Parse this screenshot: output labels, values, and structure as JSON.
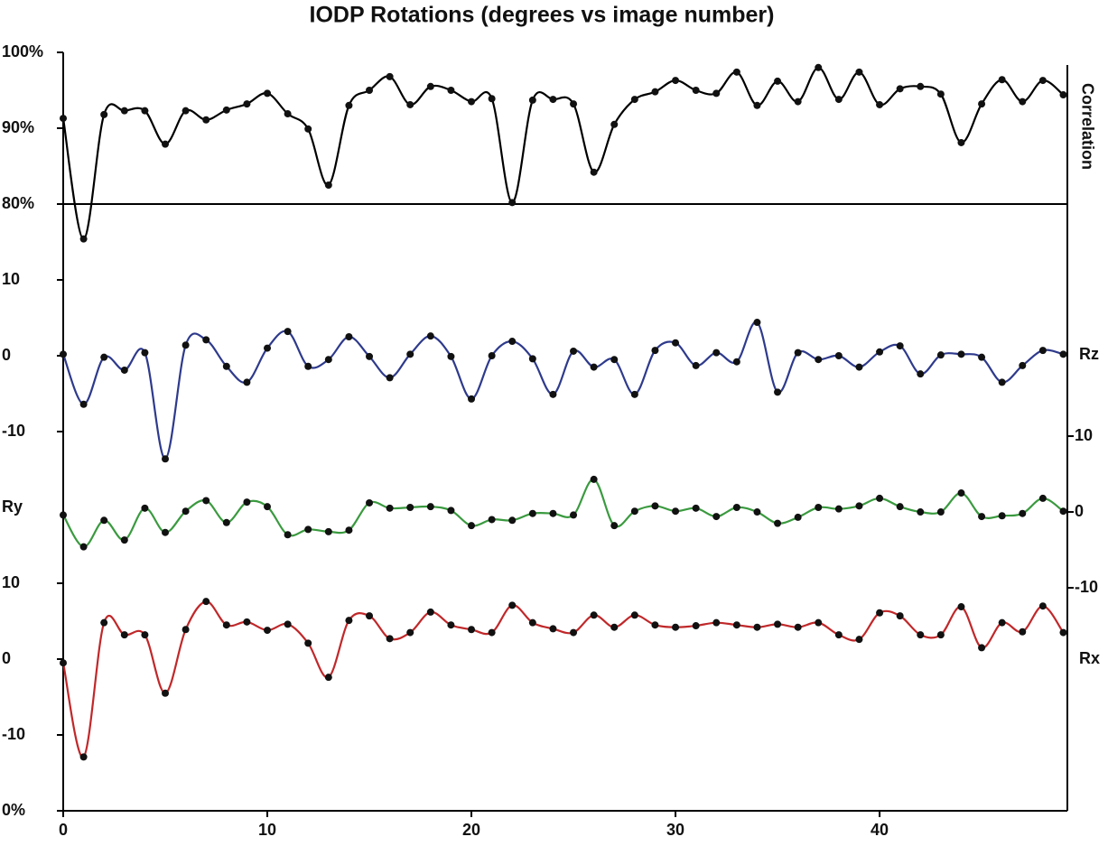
{
  "chart_data": {
    "type": "line",
    "title": "IODP Rotations (degrees vs image number)",
    "x": [
      0,
      1,
      2,
      3,
      4,
      5,
      6,
      7,
      8,
      9,
      10,
      11,
      12,
      13,
      14,
      15,
      16,
      17,
      18,
      19,
      20,
      21,
      22,
      23,
      24,
      25,
      26,
      27,
      28,
      29,
      30,
      31,
      32,
      33,
      34,
      35,
      36,
      37,
      38,
      39,
      40,
      41,
      42,
      43,
      44,
      45,
      46,
      47,
      48,
      49
    ],
    "xlim": [
      0,
      49.2
    ],
    "xticks": [
      0,
      10,
      20,
      30,
      40
    ],
    "markers": true,
    "smooth": true,
    "series": [
      {
        "name": "Correlation",
        "color": "#000000",
        "tick_side": "left",
        "name_side": "right",
        "reference_line": 80,
        "ylim": [
          0,
          100
        ],
        "yticks": [
          {
            "value": 0,
            "label": "0%"
          },
          {
            "value": 80,
            "label": "80%"
          },
          {
            "value": 90,
            "label": "90%"
          },
          {
            "value": 100,
            "label": "100%"
          }
        ],
        "values": [
          91.3,
          75.4,
          91.8,
          92.3,
          92.3,
          87.9,
          92.3,
          91.1,
          92.4,
          93.2,
          94.6,
          91.9,
          89.9,
          82.5,
          93.0,
          95.0,
          96.8,
          93.1,
          95.5,
          95.0,
          93.5,
          93.9,
          80.2,
          93.7,
          93.8,
          93.2,
          84.2,
          90.5,
          93.8,
          94.8,
          96.3,
          95.0,
          94.6,
          97.4,
          93.0,
          96.2,
          93.5,
          98.0,
          93.8,
          97.4,
          93.1,
          95.2,
          95.5,
          94.5,
          88.1,
          93.2,
          96.4,
          93.5,
          96.3,
          94.4
        ]
      },
      {
        "name": "Rz",
        "color": "#2e3a8c",
        "tick_side": "left",
        "name_side": "right",
        "ylim": [
          -60,
          40
        ],
        "yticks": [
          -10,
          0,
          10
        ],
        "values": [
          0.2,
          -6.4,
          -0.2,
          -1.9,
          0.4,
          -13.6,
          1.4,
          2.1,
          -1.4,
          -3.5,
          1.0,
          3.2,
          -1.4,
          -0.5,
          2.5,
          -0.1,
          -2.9,
          0.2,
          2.6,
          -0.1,
          -5.7,
          0,
          1.9,
          -0.4,
          -5.1,
          0.6,
          -1.5,
          -0.5,
          -5.1,
          0.7,
          1.7,
          -1.3,
          0.4,
          -0.8,
          4.4,
          -4.8,
          0.4,
          -0.5,
          0,
          -1.5,
          0.5,
          1.3,
          -2.4,
          0.1,
          0.2,
          -0.2,
          -3.5,
          -1.3,
          0.7,
          0.2
        ]
      },
      {
        "name": "Ry",
        "color": "#3a9a3f",
        "tick_side": "right",
        "name_side": "left",
        "ylim": [
          -39.4,
          60.6
        ],
        "yticks": [
          -10,
          0,
          10
        ],
        "values": [
          -0.4,
          -4.6,
          -1.1,
          -3.7,
          0.5,
          -2.7,
          0.1,
          1.5,
          -1.4,
          1.3,
          0.7,
          -3.0,
          -2.3,
          -2.6,
          -2.4,
          1.2,
          0.5,
          0.6,
          0.7,
          0.2,
          -1.8,
          -1.0,
          -1.1,
          -0.2,
          -0.2,
          -0.4,
          4.3,
          -1.8,
          0.1,
          0.8,
          0.1,
          0.5,
          -0.6,
          0.6,
          0,
          -1.5,
          -0.7,
          0.6,
          0.4,
          0.8,
          1.8,
          0.7,
          0,
          0,
          2.5,
          -0.6,
          -0.5,
          -0.2,
          1.8,
          0.1
        ]
      },
      {
        "name": "Rx",
        "color": "#c0282a",
        "tick_side": "left",
        "name_side": "right",
        "ylim": [
          -20,
          80
        ],
        "yticks": [
          -10,
          0,
          10
        ],
        "values": [
          -0.5,
          -12.9,
          4.8,
          3.2,
          3.2,
          -4.5,
          3.9,
          7.6,
          4.5,
          4.9,
          3.8,
          4.6,
          2.1,
          -2.4,
          5.1,
          5.7,
          2.7,
          3.5,
          6.2,
          4.5,
          3.9,
          3.5,
          7.1,
          4.8,
          4.0,
          3.5,
          5.8,
          4.2,
          5.8,
          4.5,
          4.2,
          4.4,
          4.8,
          4.5,
          4.2,
          4.6,
          4.2,
          4.8,
          3.2,
          2.6,
          6.1,
          5.7,
          3.2,
          3.2,
          6.9,
          1.5,
          4.8,
          3.6,
          7.0,
          3.5
        ]
      }
    ]
  }
}
